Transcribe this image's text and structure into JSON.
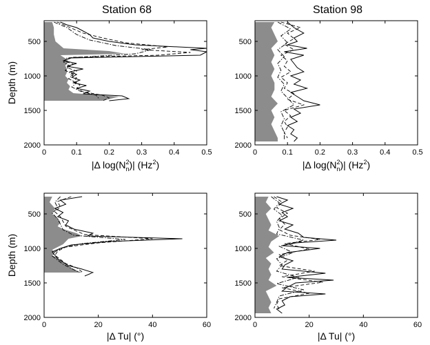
{
  "figure": {
    "panels_title_row": [
      "Station 68",
      "Station 98"
    ]
  },
  "chart_data": [
    {
      "id": "p68n",
      "type": "line",
      "title": "Station 68",
      "xlabel": "|Δ log(N²ₙ)| (Hz²)",
      "xlabel_parts": {
        "pre": "|Δ log(N",
        "sup": "2",
        "sub": "n",
        "post": ")| (Hz",
        "sup2": "2",
        "end": ")"
      },
      "ylabel": "Depth (m)",
      "xlim": [
        0,
        0.5
      ],
      "ylim": [
        2000,
        200
      ],
      "xticks": [
        0,
        0.1,
        0.2,
        0.3,
        0.4,
        0.5
      ],
      "xtick_labels": [
        "0",
        "0.1",
        "0.2",
        "0.3",
        "0.4",
        "0.5"
      ],
      "yticks": [
        500,
        1000,
        1500,
        2000
      ],
      "ytick_labels": [
        "500",
        "1000",
        "1500",
        "2000"
      ],
      "shaded": {
        "depth": [
          220,
          300,
          400,
          500,
          600,
          640,
          680,
          700,
          760,
          800,
          850,
          900,
          950,
          1000,
          1050,
          1100,
          1150,
          1200,
          1250,
          1300,
          1360
        ],
        "value": [
          0.025,
          0.03,
          0.03,
          0.035,
          0.06,
          0.2,
          0.25,
          0.05,
          0.07,
          0.075,
          0.065,
          0.07,
          0.07,
          0.065,
          0.075,
          0.07,
          0.08,
          0.075,
          0.09,
          0.23,
          0.18
        ]
      },
      "series": [
        {
          "style": "solid",
          "depth": [
            220,
            260,
            300,
            350,
            400,
            450,
            500,
            550,
            600,
            620,
            650,
            700,
            740,
            780,
            820,
            860,
            900,
            940,
            980,
            1020,
            1060,
            1100,
            1140,
            1180,
            1220,
            1260,
            1290,
            1330,
            1360
          ],
          "value": [
            0.05,
            0.07,
            0.1,
            0.12,
            0.14,
            0.15,
            0.2,
            0.28,
            0.5,
            0.45,
            0.5,
            0.48,
            0.08,
            0.06,
            0.1,
            0.07,
            0.12,
            0.08,
            0.1,
            0.085,
            0.11,
            0.09,
            0.13,
            0.1,
            0.14,
            0.12,
            0.24,
            0.26,
            0.2
          ]
        },
        {
          "style": "dash",
          "depth": [
            220,
            300,
            380,
            450,
            520,
            580,
            620,
            660,
            700,
            730,
            780,
            830,
            880,
            930,
            980,
            1030,
            1080,
            1130,
            1180,
            1230,
            1280,
            1320,
            1360
          ],
          "value": [
            0.04,
            0.08,
            0.12,
            0.18,
            0.25,
            0.38,
            0.3,
            0.45,
            0.35,
            0.09,
            0.06,
            0.09,
            0.07,
            0.1,
            0.08,
            0.1,
            0.09,
            0.11,
            0.1,
            0.12,
            0.18,
            0.2,
            0.18
          ]
        },
        {
          "style": "dashdot",
          "depth": [
            220,
            300,
            400,
            480,
            560,
            620,
            680,
            740,
            800,
            860,
            920,
            980,
            1040,
            1100,
            1160,
            1220,
            1280,
            1340
          ],
          "value": [
            0.03,
            0.07,
            0.1,
            0.14,
            0.22,
            0.33,
            0.28,
            0.07,
            0.06,
            0.08,
            0.065,
            0.09,
            0.075,
            0.1,
            0.085,
            0.11,
            0.16,
            0.17
          ]
        }
      ]
    },
    {
      "id": "p98n",
      "type": "line",
      "title": "Station 98",
      "xlabel": "|Δ log(N²ₙ)| (Hz²)",
      "xlabel_parts": {
        "pre": "|Δ log(N",
        "sup": "2",
        "sub": "n",
        "post": ")| (Hz",
        "sup2": "2",
        "end": ")"
      },
      "ylabel": "",
      "xlim": [
        0,
        0.5
      ],
      "ylim": [
        2000,
        200
      ],
      "xticks": [
        0,
        0.1,
        0.2,
        0.3,
        0.4,
        0.5
      ],
      "xtick_labels": [
        "0",
        "0.1",
        "0.2",
        "0.3",
        "0.4",
        "0.5"
      ],
      "yticks": [
        500,
        1000,
        1500,
        2000
      ],
      "ytick_labels": [
        "500",
        "1000",
        "1500",
        "2000"
      ],
      "shaded": {
        "depth": [
          220,
          300,
          400,
          500,
          600,
          700,
          800,
          900,
          1000,
          1100,
          1200,
          1300,
          1400,
          1500,
          1600,
          1700,
          1800,
          1900,
          1950
        ],
        "value": [
          0.06,
          0.05,
          0.06,
          0.07,
          0.05,
          0.06,
          0.05,
          0.06,
          0.05,
          0.06,
          0.06,
          0.05,
          0.07,
          0.05,
          0.06,
          0.05,
          0.06,
          0.07,
          0.07
        ]
      },
      "series": [
        {
          "style": "solid",
          "depth": [
            220,
            300,
            380,
            450,
            500,
            550,
            600,
            650,
            700,
            760,
            820,
            880,
            940,
            1000,
            1060,
            1120,
            1180,
            1240,
            1300,
            1360,
            1420,
            1480,
            1540,
            1600,
            1660,
            1720,
            1780,
            1840,
            1900,
            1950
          ],
          "value": [
            0.1,
            0.12,
            0.15,
            0.12,
            0.13,
            0.1,
            0.16,
            0.09,
            0.15,
            0.11,
            0.12,
            0.13,
            0.15,
            0.11,
            0.14,
            0.12,
            0.16,
            0.11,
            0.13,
            0.15,
            0.2,
            0.12,
            0.14,
            0.11,
            0.13,
            0.1,
            0.12,
            0.11,
            0.13,
            0.12
          ]
        },
        {
          "style": "dash",
          "depth": [
            220,
            300,
            380,
            460,
            540,
            620,
            700,
            780,
            860,
            940,
            1020,
            1100,
            1180,
            1260,
            1340,
            1420,
            1500,
            1580,
            1660,
            1740,
            1820,
            1900
          ],
          "value": [
            0.08,
            0.14,
            0.1,
            0.12,
            0.09,
            0.12,
            0.08,
            0.1,
            0.09,
            0.11,
            0.08,
            0.1,
            0.09,
            0.12,
            0.1,
            0.15,
            0.09,
            0.11,
            0.09,
            0.1,
            0.09,
            0.1
          ]
        },
        {
          "style": "dashdot",
          "depth": [
            220,
            320,
            420,
            520,
            620,
            720,
            820,
            920,
            1020,
            1120,
            1220,
            1320,
            1420,
            1520,
            1620,
            1720,
            1820,
            1920
          ],
          "value": [
            0.07,
            0.11,
            0.08,
            0.1,
            0.07,
            0.09,
            0.07,
            0.08,
            0.07,
            0.09,
            0.08,
            0.1,
            0.12,
            0.08,
            0.09,
            0.08,
            0.09,
            0.09
          ]
        }
      ]
    },
    {
      "id": "p68t",
      "type": "line",
      "title": "",
      "xlabel": "|Δ Tu| (°)",
      "ylabel": "Depth (m)",
      "xlim": [
        0,
        60
      ],
      "ylim": [
        2000,
        200
      ],
      "xticks": [
        0,
        20,
        40,
        60
      ],
      "xtick_labels": [
        "0",
        "20",
        "40",
        "60"
      ],
      "yticks": [
        500,
        1000,
        1500,
        2000
      ],
      "ytick_labels": [
        "500",
        "1000",
        "1500",
        "2000"
      ],
      "shaded": {
        "depth": [
          250,
          330,
          420,
          500,
          560,
          620,
          680,
          720,
          780,
          820,
          860,
          900,
          940,
          980,
          1020,
          1060,
          1100,
          1140,
          1180,
          1230,
          1280,
          1320,
          1350
        ],
        "value": [
          3,
          2,
          4,
          3,
          5,
          6,
          5,
          7,
          12,
          14,
          9,
          8,
          7,
          5,
          3,
          4,
          3,
          5,
          6,
          8,
          10,
          12,
          14
        ]
      },
      "series": [
        {
          "style": "solid",
          "depth": [
            250,
            300,
            360,
            420,
            480,
            540,
            600,
            660,
            720,
            780,
            820,
            860,
            900,
            950,
            1000,
            1050,
            1100,
            1150,
            1200,
            1250,
            1300,
            1350,
            1400
          ],
          "value": [
            14,
            6,
            8,
            4,
            7,
            5,
            9,
            8,
            11,
            18,
            16,
            51,
            24,
            10,
            6,
            3,
            4,
            5,
            7,
            9,
            14,
            18,
            15
          ]
        },
        {
          "style": "dash",
          "depth": [
            250,
            320,
            400,
            470,
            540,
            610,
            680,
            750,
            800,
            860,
            920,
            980,
            1040,
            1100,
            1160,
            1220,
            1280,
            1340
          ],
          "value": [
            10,
            5,
            6,
            4,
            6,
            7,
            8,
            12,
            15,
            40,
            20,
            8,
            5,
            4,
            6,
            8,
            12,
            14
          ]
        },
        {
          "style": "dashdot",
          "depth": [
            250,
            330,
            410,
            490,
            570,
            650,
            730,
            810,
            870,
            930,
            990,
            1050,
            1110,
            1170,
            1230,
            1290,
            1350
          ],
          "value": [
            6,
            4,
            5,
            3,
            5,
            6,
            7,
            11,
            30,
            14,
            7,
            4,
            3,
            5,
            7,
            10,
            13
          ]
        }
      ]
    },
    {
      "id": "p98t",
      "type": "line",
      "title": "",
      "xlabel": "|Δ Tu| (°)",
      "ylabel": "",
      "xlim": [
        0,
        60
      ],
      "ylim": [
        2000,
        200
      ],
      "xticks": [
        0,
        20,
        40,
        60
      ],
      "xtick_labels": [
        "0",
        "20",
        "40",
        "60"
      ],
      "yticks": [
        500,
        1000,
        1500,
        2000
      ],
      "ytick_labels": [
        "500",
        "1000",
        "1500",
        "2000"
      ],
      "shaded": {
        "depth": [
          250,
          330,
          420,
          500,
          580,
          660,
          740,
          820,
          900,
          980,
          1060,
          1140,
          1220,
          1300,
          1380,
          1460,
          1540,
          1620,
          1700,
          1780,
          1860,
          1940
        ],
        "value": [
          5,
          4,
          6,
          4,
          5,
          6,
          5,
          9,
          6,
          5,
          7,
          4,
          6,
          5,
          6,
          5,
          8,
          4,
          5,
          6,
          5,
          6
        ]
      },
      "series": [
        {
          "style": "solid",
          "depth": [
            250,
            300,
            360,
            420,
            480,
            540,
            600,
            660,
            720,
            780,
            840,
            880,
            920,
            960,
            1000,
            1060,
            1120,
            1180,
            1240,
            1300,
            1360,
            1420,
            1460,
            1500,
            1560,
            1620,
            1660,
            1700,
            1760,
            1820,
            1880,
            1940
          ],
          "value": [
            8,
            12,
            9,
            14,
            10,
            12,
            9,
            14,
            11,
            16,
            18,
            30,
            15,
            10,
            24,
            12,
            9,
            14,
            11,
            10,
            26,
            12,
            29,
            15,
            12,
            10,
            26,
            13,
            10,
            11,
            8,
            10
          ]
        },
        {
          "style": "dash",
          "depth": [
            250,
            330,
            410,
            490,
            570,
            650,
            730,
            810,
            870,
            930,
            1010,
            1090,
            1170,
            1250,
            1330,
            1410,
            1490,
            1570,
            1650,
            1730,
            1810,
            1890
          ],
          "value": [
            7,
            10,
            8,
            12,
            9,
            11,
            9,
            13,
            24,
            11,
            20,
            9,
            12,
            9,
            22,
            10,
            25,
            10,
            20,
            9,
            8,
            9
          ]
        },
        {
          "style": "dashdot",
          "depth": [
            250,
            340,
            430,
            520,
            610,
            700,
            790,
            880,
            970,
            1060,
            1150,
            1240,
            1330,
            1420,
            1510,
            1600,
            1690,
            1780,
            1870
          ],
          "value": [
            6,
            9,
            7,
            10,
            8,
            9,
            8,
            18,
            9,
            14,
            8,
            10,
            8,
            16,
            8,
            18,
            9,
            8,
            7
          ]
        }
      ]
    }
  ]
}
